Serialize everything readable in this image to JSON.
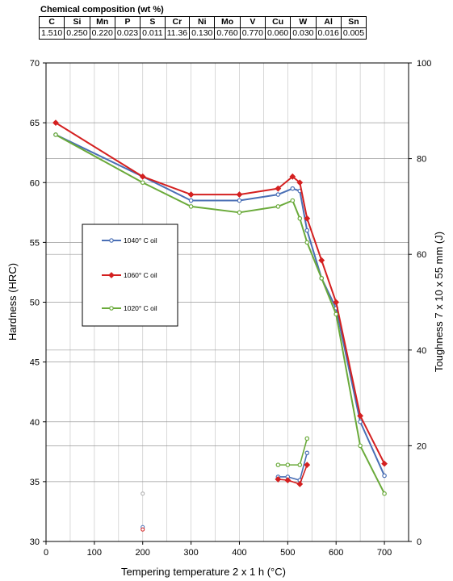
{
  "composition": {
    "title": "Chemical composition (wt %)",
    "headers": [
      "C",
      "Si",
      "Mn",
      "P",
      "S",
      "Cr",
      "Ni",
      "Mo",
      "V",
      "Cu",
      "W",
      "Al",
      "Sn"
    ],
    "values": [
      "1.510",
      "0.250",
      "0.220",
      "0.023",
      "0.011",
      "11.36",
      "0.130",
      "0.760",
      "0.770",
      "0.060",
      "0.030",
      "0.016",
      "0.005"
    ]
  },
  "chart_data": {
    "type": "line",
    "xlabel": "Tempering temperature 2 x 1 h (°C)",
    "ylabel": "Hardness (HRC)",
    "y2label": "Toughness  7 x 10 x 55  mm  (J)",
    "xlim": [
      0,
      750
    ],
    "ylim": [
      30,
      70
    ],
    "y2lim": [
      0,
      100
    ],
    "xticks": [
      0,
      100,
      200,
      300,
      400,
      500,
      600,
      700
    ],
    "yticks": [
      30,
      35,
      40,
      45,
      50,
      55,
      60,
      65,
      70
    ],
    "y2ticks": [
      0,
      20,
      40,
      60,
      80,
      100
    ],
    "grid": true,
    "legend_position": "left",
    "series": [
      {
        "name": "1040° C oil",
        "color": "#4a6fb5",
        "marker": "circle",
        "hardness": [
          [
            20,
            64
          ],
          [
            200,
            60.5
          ],
          [
            300,
            58.5
          ],
          [
            400,
            58.5
          ],
          [
            480,
            59
          ],
          [
            510,
            59.5
          ],
          [
            525,
            59.3
          ],
          [
            540,
            56
          ],
          [
            570,
            52
          ],
          [
            600,
            49.5
          ],
          [
            650,
            40
          ],
          [
            700,
            35.5
          ]
        ],
        "toughness": [
          [
            480,
            13.5
          ],
          [
            500,
            13.5
          ],
          [
            525,
            12.8
          ],
          [
            540,
            18.5
          ]
        ]
      },
      {
        "name": "1060° C oil",
        "color": "#d42020",
        "marker": "diamond",
        "hardness": [
          [
            20,
            65
          ],
          [
            200,
            60.5
          ],
          [
            300,
            59
          ],
          [
            400,
            59
          ],
          [
            480,
            59.5
          ],
          [
            510,
            60.5
          ],
          [
            525,
            60
          ],
          [
            540,
            57
          ],
          [
            570,
            53.5
          ],
          [
            600,
            50
          ],
          [
            650,
            40.5
          ],
          [
            700,
            36.5
          ]
        ],
        "toughness": [
          [
            480,
            13
          ],
          [
            500,
            12.8
          ],
          [
            525,
            12
          ],
          [
            540,
            16
          ]
        ]
      },
      {
        "name": "1020° C oil",
        "color": "#6aaa3a",
        "marker": "circle",
        "hardness": [
          [
            20,
            64
          ],
          [
            200,
            60
          ],
          [
            300,
            58
          ],
          [
            400,
            57.5
          ],
          [
            480,
            58
          ],
          [
            510,
            58.5
          ],
          [
            525,
            57
          ],
          [
            540,
            55
          ],
          [
            570,
            52
          ],
          [
            600,
            49
          ],
          [
            650,
            38
          ],
          [
            700,
            34
          ]
        ],
        "toughness": [
          [
            480,
            16
          ],
          [
            500,
            16
          ],
          [
            525,
            16
          ],
          [
            540,
            21.5
          ]
        ]
      }
    ],
    "extra_points": [
      {
        "x": 200,
        "y": 10,
        "color": "#aaaaaa"
      },
      {
        "x": 200,
        "y": 3,
        "color": "#4a6fb5"
      },
      {
        "x": 200,
        "y": 2.5,
        "color": "#d42020"
      }
    ]
  }
}
